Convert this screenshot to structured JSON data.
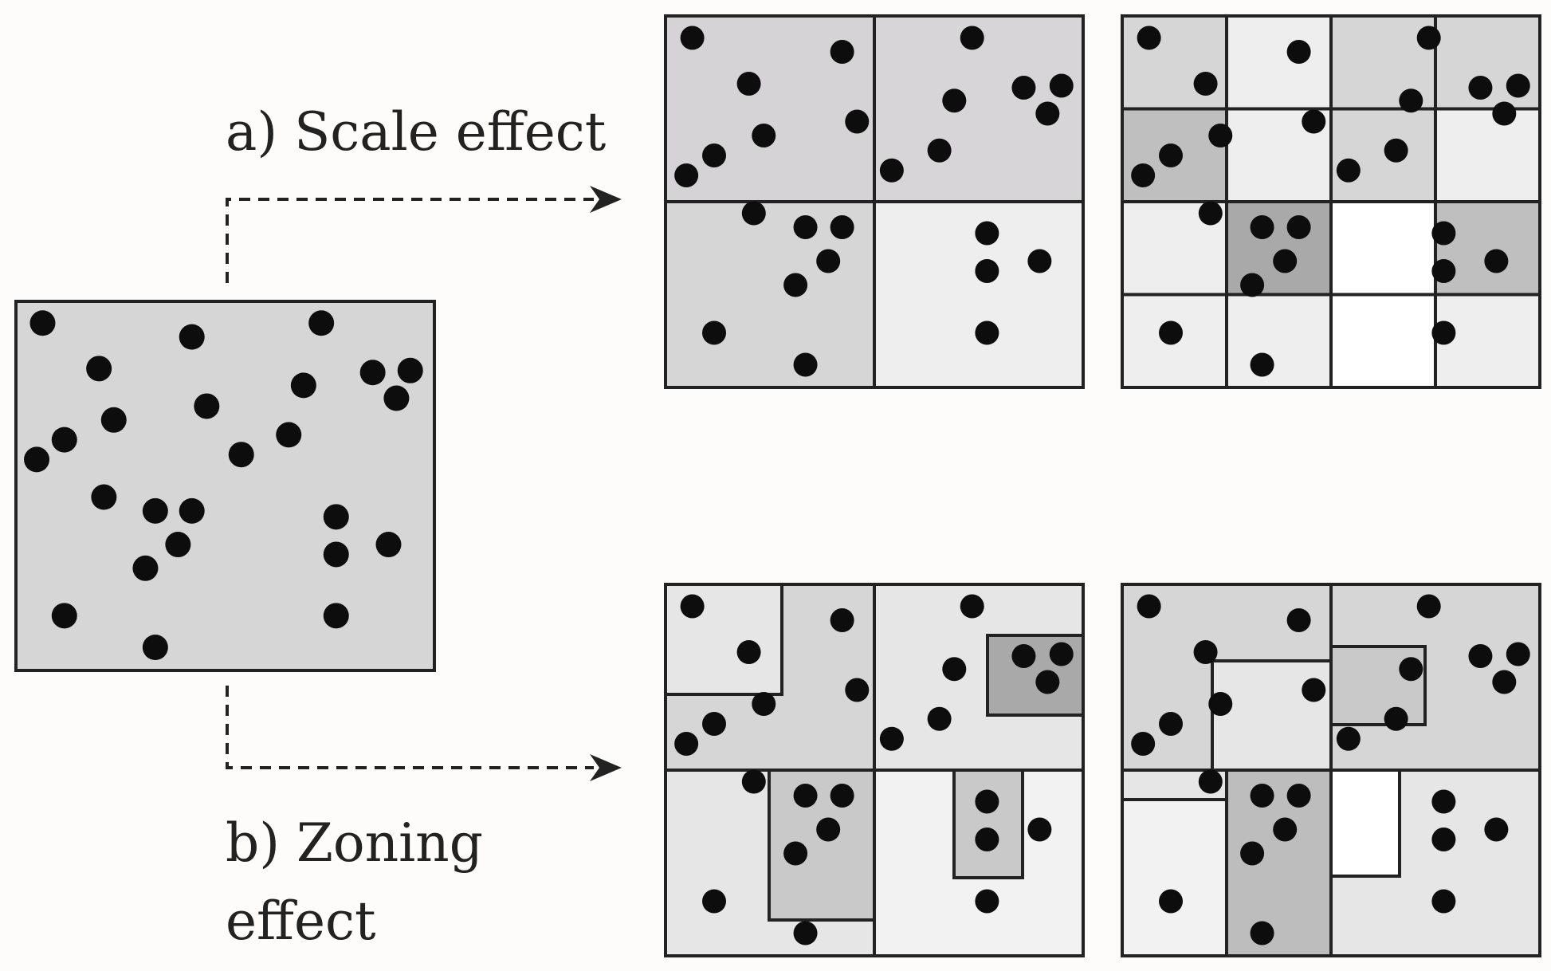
{
  "labels": {
    "scale_effect": "a) Scale effect",
    "zoning_effect_line1": "b) Zoning",
    "zoning_effect_line2": "effect"
  },
  "colors": {
    "background": "#fdfcfa",
    "stroke": "#222222",
    "dot": "#0d0d0d",
    "base_fill": "#d6d6d6"
  },
  "icons": {
    "scale_arrow": "dashed-arrow-right",
    "zoning_arrow": "dashed-arrow-right",
    "point": "filled-circle"
  }
}
